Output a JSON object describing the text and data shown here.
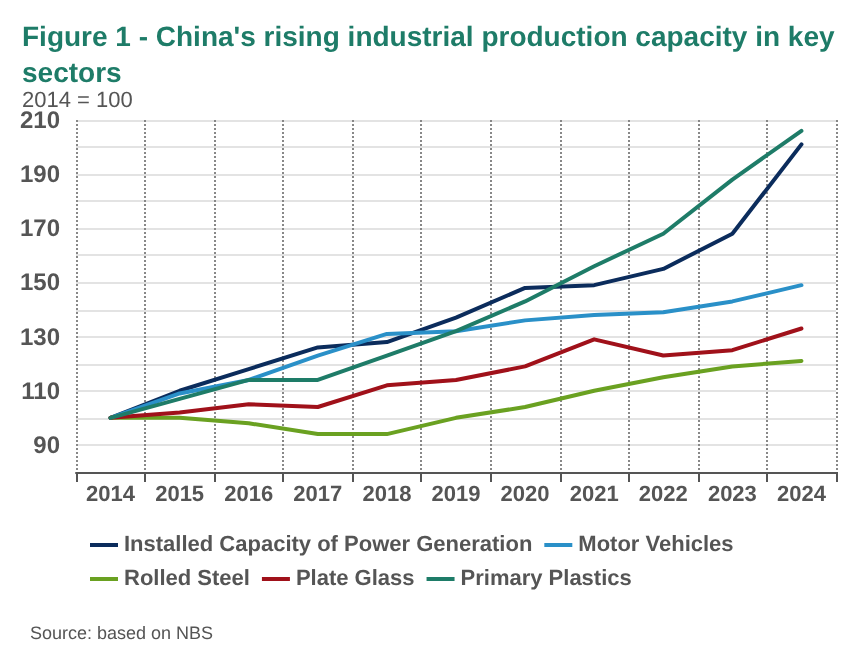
{
  "chart_data": {
    "type": "line",
    "title": "Figure 1 - China's rising industrial production capacity in key sectors",
    "subtitle": "2014 = 100",
    "categories": [
      "2014",
      "2015",
      "2016",
      "2017",
      "2018",
      "2019",
      "2020",
      "2021",
      "2022",
      "2023",
      "2024"
    ],
    "series": [
      {
        "name": "Installed Capacity of Power Generation",
        "color": "#0b2c5c",
        "values": [
          100,
          110,
          118,
          126,
          128,
          137,
          148,
          149,
          155,
          168,
          201
        ]
      },
      {
        "name": "Motor Vehicles",
        "color": "#2a90c8",
        "values": [
          100,
          109,
          114,
          123,
          131,
          132,
          136,
          138,
          139,
          143,
          149
        ]
      },
      {
        "name": "Rolled Steel",
        "color": "#6aa121",
        "values": [
          100,
          100,
          98,
          94,
          94,
          100,
          104,
          110,
          115,
          119,
          121
        ]
      },
      {
        "name": "Plate Glass",
        "color": "#a0111a",
        "values": [
          100,
          102,
          105,
          104,
          112,
          114,
          119,
          129,
          123,
          125,
          133
        ]
      },
      {
        "name": "Primary Plastics",
        "color": "#1e7c68",
        "values": [
          100,
          107,
          114,
          114,
          123,
          132,
          143,
          156,
          168,
          188,
          206
        ]
      }
    ],
    "ylim": [
      80,
      210
    ],
    "yticks": [
      90,
      {
        "value": 100,
        "label": null
      },
      110,
      {
        "value": 120,
        "label": null
      },
      130,
      {
        "value": 140,
        "label": null
      },
      150,
      {
        "value": 160,
        "label": null
      },
      170,
      {
        "value": 180,
        "label": null
      },
      190,
      {
        "value": 200,
        "label": null
      },
      210
    ],
    "grid": true,
    "legend": "bottom",
    "marker": "none",
    "line_style": "solid",
    "annotations": [
      "Source: based on NBS"
    ]
  }
}
